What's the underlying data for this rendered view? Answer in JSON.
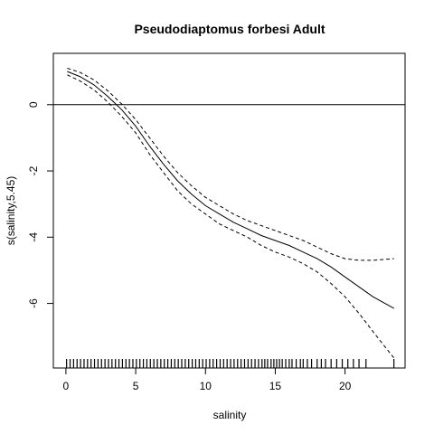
{
  "chart_data": {
    "type": "line",
    "title": "Pseudodiaptomus forbesi Adult",
    "xlabel": "salinity",
    "ylabel": "s(salinity,5.45)",
    "xlim": [
      -0.9,
      24.3
    ],
    "ylim": [
      -7.95,
      1.55
    ],
    "xticks": [
      0,
      5,
      10,
      15,
      20
    ],
    "xtick_labels": [
      "0",
      "5",
      "10",
      "15",
      "20"
    ],
    "yticks": [
      -6,
      -4,
      -2,
      0
    ],
    "ytick_labels": [
      "-6",
      "-4",
      "-2",
      "0"
    ],
    "reference_line_y": 0,
    "grid": false,
    "legend": "none",
    "series": [
      {
        "style": "solid",
        "x": [
          0.1,
          1,
          2,
          3,
          4,
          5,
          6,
          7,
          8,
          9,
          10,
          11,
          12,
          13,
          14,
          15,
          16,
          17,
          18,
          19,
          20,
          21,
          22,
          23.5
        ],
        "y": [
          1.0,
          0.85,
          0.6,
          0.25,
          -0.15,
          -0.65,
          -1.25,
          -1.8,
          -2.3,
          -2.7,
          -3.05,
          -3.3,
          -3.55,
          -3.75,
          -3.95,
          -4.1,
          -4.25,
          -4.45,
          -4.65,
          -4.9,
          -5.2,
          -5.5,
          -5.8,
          -6.15
        ]
      },
      {
        "style": "dashed",
        "x": [
          0.1,
          1,
          2,
          3,
          4,
          5,
          6,
          7,
          8,
          9,
          10,
          11,
          12,
          13,
          14,
          15,
          16,
          17,
          18,
          19,
          20,
          21,
          22,
          23.5
        ],
        "y": [
          1.1,
          0.98,
          0.75,
          0.42,
          0.02,
          -0.45,
          -1.0,
          -1.55,
          -2.05,
          -2.45,
          -2.8,
          -3.05,
          -3.3,
          -3.5,
          -3.65,
          -3.8,
          -3.95,
          -4.1,
          -4.3,
          -4.5,
          -4.65,
          -4.7,
          -4.7,
          -4.65
        ]
      },
      {
        "style": "dashed",
        "x": [
          0.1,
          1,
          2,
          3,
          4,
          5,
          6,
          7,
          8,
          9,
          10,
          11,
          12,
          13,
          14,
          15,
          16,
          17,
          18,
          19,
          20,
          21,
          22,
          23.5
        ],
        "y": [
          0.9,
          0.72,
          0.45,
          0.08,
          -0.35,
          -0.85,
          -1.5,
          -2.05,
          -2.6,
          -3.0,
          -3.3,
          -3.6,
          -3.8,
          -4.0,
          -4.25,
          -4.45,
          -4.6,
          -4.8,
          -5.05,
          -5.4,
          -5.8,
          -6.3,
          -6.85,
          -7.65
        ]
      }
    ],
    "rug": [
      0.05,
      0.3,
      0.55,
      0.8,
      1.05,
      1.3,
      1.55,
      1.8,
      2.05,
      2.3,
      2.55,
      2.8,
      3.05,
      3.3,
      3.55,
      3.8,
      4.05,
      4.3,
      4.55,
      4.8,
      5.05,
      5.3,
      5.55,
      5.8,
      6.05,
      6.3,
      6.55,
      6.8,
      7.05,
      7.3,
      7.55,
      7.8,
      8.05,
      8.3,
      8.55,
      8.8,
      9.05,
      9.3,
      9.55,
      9.8,
      10.05,
      10.3,
      10.55,
      10.8,
      11.05,
      11.3,
      11.55,
      11.8,
      12.05,
      12.3,
      12.55,
      12.8,
      13.05,
      13.3,
      13.55,
      13.8,
      14.05,
      14.25,
      14.45,
      14.7,
      14.9,
      15.1,
      15.3,
      15.5,
      15.75,
      16.0,
      16.2,
      16.5,
      16.8,
      17.0,
      17.3,
      17.6,
      18.0,
      18.3,
      18.6,
      19.0,
      19.4,
      19.8,
      20.2,
      20.6,
      21.0,
      21.5,
      23.5
    ]
  }
}
